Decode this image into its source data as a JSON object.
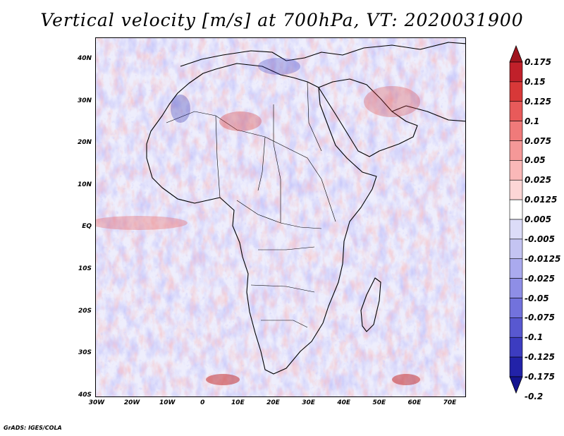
{
  "title": "Vertical velocity [m/s] at 700hPa, VT: 2020031900",
  "footer": "GrADS: IGES/COLA",
  "map": {
    "lat_labels": [
      "40N",
      "30N",
      "20N",
      "10N",
      "EQ",
      "10S",
      "20S",
      "30S",
      "40S"
    ],
    "lon_labels": [
      "30W",
      "20W",
      "10W",
      "0",
      "10E",
      "20E",
      "30E",
      "40E",
      "50E",
      "60E",
      "70E"
    ],
    "lat_range": [
      -40,
      45
    ],
    "lon_range": [
      -30,
      75
    ]
  },
  "colorbar": {
    "labels": [
      "0.175",
      "0.15",
      "0.125",
      "0.1",
      "0.075",
      "0.05",
      "0.025",
      "0.0125",
      "0.005",
      "-0.005",
      "-0.0125",
      "-0.025",
      "-0.05",
      "-0.075",
      "-0.1",
      "-0.125",
      "-0.175",
      "-0.2"
    ],
    "colors": [
      "#a0141e",
      "#c0202a",
      "#d83838",
      "#e85a5a",
      "#f07a7a",
      "#f59898",
      "#fab8b8",
      "#fcd6d6",
      "#ffffff",
      "#dcdcf8",
      "#c4c4f2",
      "#aaaaee",
      "#8e8ee6",
      "#7272dc",
      "#5858d0",
      "#3c3cc0",
      "#2222a8",
      "#141490"
    ]
  }
}
